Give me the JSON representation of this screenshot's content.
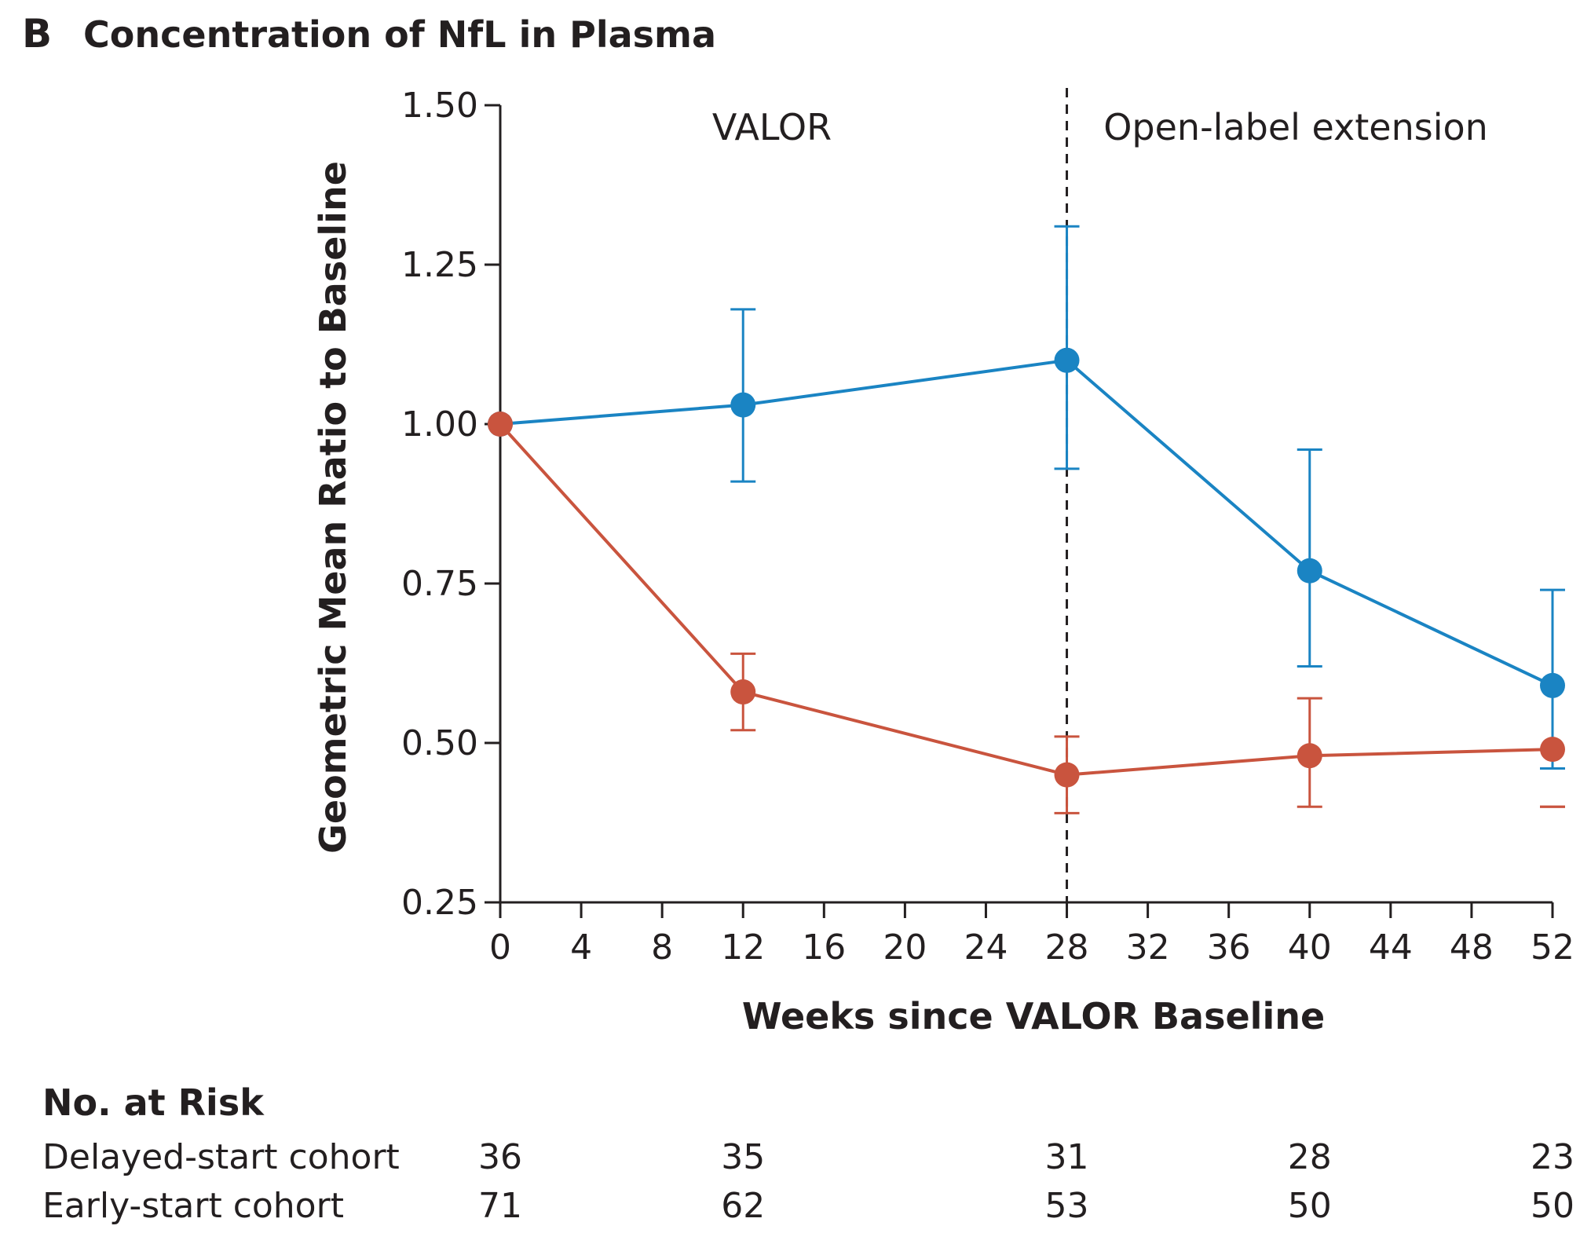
{
  "panel_letter": "B",
  "title": "Concentration of NfL in Plasma",
  "colors": {
    "delayed": "#1a84c3",
    "early": "#c9543e",
    "axis": "#231f20"
  },
  "chart_data": {
    "type": "line",
    "xlabel": "Weeks since VALOR Baseline",
    "ylabel": "Geometric Mean Ratio to Baseline",
    "xlim": [
      0,
      52
    ],
    "ylim": [
      0.25,
      1.5
    ],
    "x_ticks": [
      0,
      4,
      8,
      12,
      16,
      20,
      24,
      28,
      32,
      36,
      40,
      44,
      48,
      52
    ],
    "y_ticks": [
      "0.25",
      "0.50",
      "0.75",
      "1.00",
      "1.25",
      "1.50"
    ],
    "divider_x": 28,
    "regions": [
      "VALOR",
      "Open-label extension"
    ],
    "series": [
      {
        "key": "delayed",
        "x": [
          0,
          12,
          28,
          40,
          52
        ],
        "y": [
          1.0,
          1.03,
          1.1,
          0.77,
          0.59
        ],
        "ci_low": [
          null,
          0.91,
          0.93,
          0.62,
          0.46
        ],
        "ci_high": [
          null,
          1.18,
          1.31,
          0.96,
          0.74
        ]
      },
      {
        "key": "early",
        "x": [
          0,
          12,
          28,
          40,
          52
        ],
        "y": [
          1.0,
          0.58,
          0.45,
          0.48,
          0.49
        ],
        "ci_low": [
          null,
          0.52,
          0.39,
          0.4,
          0.4
        ],
        "ci_high": [
          null,
          0.64,
          0.51,
          0.57,
          0.4
        ]
      }
    ]
  },
  "risk_table": {
    "heading": "No. at Risk",
    "weeks": [
      0,
      12,
      28,
      40,
      52
    ],
    "rows": [
      {
        "key": "delayed",
        "label": "Delayed-start cohort",
        "values": [
          "36",
          "35",
          "31",
          "28",
          "23"
        ]
      },
      {
        "key": "early",
        "label": "Early-start cohort",
        "values": [
          "71",
          "62",
          "53",
          "50",
          "50"
        ]
      }
    ]
  }
}
